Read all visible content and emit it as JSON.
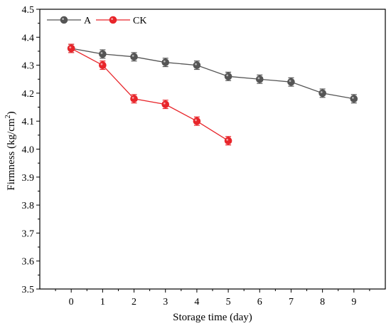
{
  "chart_data": {
    "type": "line",
    "xlabel": "Storage time (day)",
    "ylabel_main": "Firmness (kg/cm",
    "ylabel_sup": "2",
    "ylabel_tail": ")",
    "xlim": [
      -1,
      10
    ],
    "ylim": [
      3.5,
      4.5
    ],
    "xticks": [
      0,
      1,
      2,
      3,
      4,
      5,
      6,
      7,
      8,
      9
    ],
    "yticks": [
      3.5,
      3.6,
      3.7,
      3.8,
      3.9,
      4.0,
      4.1,
      4.2,
      4.3,
      4.4,
      4.5
    ],
    "legend_position": "top-left",
    "series": [
      {
        "name": "A",
        "color": "#555555",
        "x": [
          0,
          1,
          2,
          3,
          4,
          5,
          6,
          7,
          8,
          9
        ],
        "y": [
          4.36,
          4.34,
          4.33,
          4.31,
          4.3,
          4.26,
          4.25,
          4.24,
          4.2,
          4.18
        ],
        "err": [
          0.015,
          0.015,
          0.015,
          0.015,
          0.015,
          0.015,
          0.015,
          0.015,
          0.015,
          0.015
        ]
      },
      {
        "name": "CK",
        "color": "#e8252a",
        "x": [
          0,
          1,
          2,
          3,
          4,
          5
        ],
        "y": [
          4.36,
          4.3,
          4.18,
          4.16,
          4.1,
          4.03
        ],
        "err": [
          0.015,
          0.015,
          0.015,
          0.015,
          0.015,
          0.015
        ]
      }
    ]
  }
}
